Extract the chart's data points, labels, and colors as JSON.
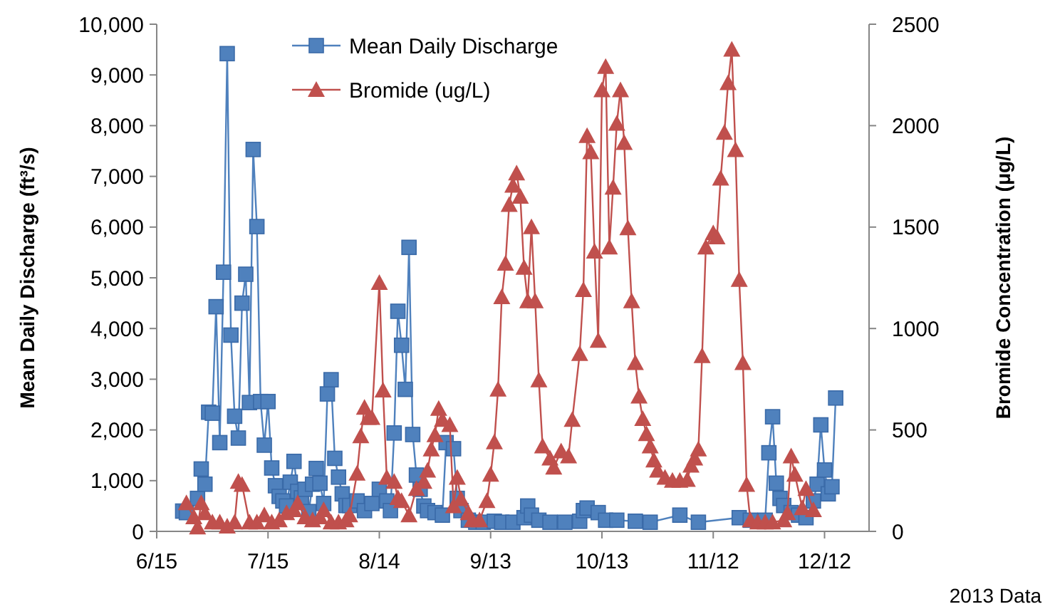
{
  "chart_data": {
    "type": "line",
    "ylabel": "Mean Daily Discharge (ft³/s)",
    "y2label": "Bromide Concentration (μg/L)",
    "annotations": [
      "2013 Data"
    ],
    "legend": "top",
    "grid": false,
    "line_style": "solid",
    "xlim": [
      "2013-06-15",
      "2013-12-24"
    ],
    "xticks": [
      {
        "value": "2013-06-15",
        "label": "6/15"
      },
      {
        "value": "2013-07-15",
        "label": "7/15"
      },
      {
        "value": "2013-08-14",
        "label": "8/14"
      },
      {
        "value": "2013-09-13",
        "label": "9/13"
      },
      {
        "value": "2013-10-13",
        "label": "10/13"
      },
      {
        "value": "2013-11-12",
        "label": "11/12"
      },
      {
        "value": "2013-12-12",
        "label": "12/12"
      }
    ],
    "ylim": [
      0,
      10000
    ],
    "yticks": [
      0,
      {
        "value": 1000,
        "label": "1,000"
      },
      {
        "value": 2000,
        "label": "2,000"
      },
      {
        "value": 3000,
        "label": "3,000"
      },
      {
        "value": 4000,
        "label": "4,000"
      },
      {
        "value": 5000,
        "label": "5,000"
      },
      {
        "value": 6000,
        "label": "6,000"
      },
      {
        "value": 7000,
        "label": "7,000"
      },
      {
        "value": 8000,
        "label": "8,000"
      },
      {
        "value": 9000,
        "label": "9,000"
      },
      {
        "value": 10000,
        "label": "10,000"
      }
    ],
    "y2lim": [
      0,
      2500
    ],
    "y2ticks": [
      0,
      500,
      1000,
      1500,
      2000,
      2500
    ],
    "series": [
      {
        "name": "Mean Daily Discharge",
        "color": "#4f81bd",
        "marker": "square",
        "x": [
          "2013-06-22",
          "2013-06-23",
          "2013-06-26",
          "2013-06-27",
          "2013-06-28",
          "2013-06-29",
          "2013-06-30",
          "2013-07-01",
          "2013-07-02",
          "2013-07-03",
          "2013-07-04",
          "2013-07-05",
          "2013-07-06",
          "2013-07-07",
          "2013-07-08",
          "2013-07-09",
          "2013-07-10",
          "2013-07-11",
          "2013-07-12",
          "2013-07-13",
          "2013-07-14",
          "2013-07-15",
          "2013-07-16",
          "2013-07-17",
          "2013-07-18",
          "2013-07-19",
          "2013-07-20",
          "2013-07-21",
          "2013-07-22",
          "2013-07-23",
          "2013-07-24",
          "2013-07-25",
          "2013-07-26",
          "2013-07-27",
          "2013-07-28",
          "2013-07-29",
          "2013-07-30",
          "2013-07-31",
          "2013-08-01",
          "2013-08-02",
          "2013-08-03",
          "2013-08-04",
          "2013-08-05",
          "2013-08-06",
          "2013-08-08",
          "2013-08-10",
          "2013-08-12",
          "2013-08-14",
          "2013-08-16",
          "2013-08-17",
          "2013-08-18",
          "2013-08-19",
          "2013-08-20",
          "2013-08-21",
          "2013-08-22",
          "2013-08-23",
          "2013-08-24",
          "2013-08-25",
          "2013-08-26",
          "2013-08-27",
          "2013-08-29",
          "2013-08-31",
          "2013-09-01",
          "2013-09-03",
          "2013-09-04",
          "2013-09-05",
          "2013-09-07",
          "2013-09-09",
          "2013-09-11",
          "2013-09-14",
          "2013-09-16",
          "2013-09-19",
          "2013-09-22",
          "2013-09-23",
          "2013-09-24",
          "2013-09-26",
          "2013-09-29",
          "2013-10-03",
          "2013-10-07",
          "2013-10-08",
          "2013-10-09",
          "2013-10-12",
          "2013-10-14",
          "2013-10-17",
          "2013-10-22",
          "2013-10-26",
          "2013-11-03",
          "2013-11-08",
          "2013-11-19",
          "2013-11-22",
          "2013-11-26",
          "2013-11-27",
          "2013-11-28",
          "2013-11-29",
          "2013-11-30",
          "2013-12-01",
          "2013-12-03",
          "2013-12-05",
          "2013-12-07",
          "2013-12-09",
          "2013-12-10",
          "2013-12-11",
          "2013-12-12",
          "2013-12-13",
          "2013-12-14",
          "2013-12-15"
        ],
        "values": [
          400,
          370,
          650,
          1230,
          930,
          2350,
          2330,
          4430,
          1750,
          5110,
          9420,
          3870,
          2270,
          1840,
          4500,
          5070,
          2540,
          7530,
          6010,
          2560,
          1700,
          2560,
          1250,
          900,
          690,
          600,
          500,
          970,
          1380,
          790,
          660,
          830,
          390,
          930,
          1240,
          950,
          550,
          2710,
          2990,
          1440,
          1070,
          740,
          510,
          510,
          600,
          410,
          550,
          830,
          600,
          410,
          1940,
          4340,
          3670,
          2800,
          5600,
          1910,
          1110,
          830,
          500,
          410,
          370,
          320,
          1750,
          1630,
          650,
          410,
          220,
          180,
          180,
          200,
          180,
          180,
          270,
          500,
          320,
          220,
          180,
          180,
          200,
          410,
          460,
          370,
          220,
          220,
          200,
          180,
          320,
          180,
          270,
          220,
          220,
          1550,
          2260,
          950,
          650,
          510,
          370,
          320,
          270,
          600,
          930,
          2100,
          1210,
          740,
          880,
          2630
        ]
      },
      {
        "name": "Bromide (ug/L)",
        "color": "#c0504d",
        "marker": "triangle",
        "axis": "y2",
        "x": [
          "2013-06-23",
          "2013-06-25",
          "2013-06-26",
          "2013-06-27",
          "2013-06-28",
          "2013-06-30",
          "2013-07-02",
          "2013-07-04",
          "2013-07-06",
          "2013-07-07",
          "2013-07-08",
          "2013-07-10",
          "2013-07-12",
          "2013-07-14",
          "2013-07-16",
          "2013-07-18",
          "2013-07-20",
          "2013-07-22",
          "2013-07-23",
          "2013-07-25",
          "2013-07-27",
          "2013-07-29",
          "2013-07-30",
          "2013-08-01",
          "2013-08-03",
          "2013-08-05",
          "2013-08-06",
          "2013-08-08",
          "2013-08-09",
          "2013-08-10",
          "2013-08-11",
          "2013-08-12",
          "2013-08-14",
          "2013-08-15",
          "2013-08-16",
          "2013-08-18",
          "2013-08-19",
          "2013-08-20",
          "2013-08-22",
          "2013-08-24",
          "2013-08-26",
          "2013-08-27",
          "2013-08-28",
          "2013-08-29",
          "2013-08-30",
          "2013-08-31",
          "2013-09-02",
          "2013-09-03",
          "2013-09-04",
          "2013-09-05",
          "2013-09-07",
          "2013-09-08",
          "2013-09-10",
          "2013-09-12",
          "2013-09-13",
          "2013-09-14",
          "2013-09-15",
          "2013-09-16",
          "2013-09-17",
          "2013-09-18",
          "2013-09-19",
          "2013-09-20",
          "2013-09-21",
          "2013-09-22",
          "2013-09-23",
          "2013-09-24",
          "2013-09-25",
          "2013-09-26",
          "2013-09-27",
          "2013-09-29",
          "2013-09-30",
          "2013-10-02",
          "2013-10-04",
          "2013-10-05",
          "2013-10-07",
          "2013-10-08",
          "2013-10-09",
          "2013-10-10",
          "2013-10-11",
          "2013-10-12",
          "2013-10-13",
          "2013-10-14",
          "2013-10-15",
          "2013-10-16",
          "2013-10-17",
          "2013-10-18",
          "2013-10-19",
          "2013-10-20",
          "2013-10-21",
          "2013-10-22",
          "2013-10-23",
          "2013-10-24",
          "2013-10-25",
          "2013-10-26",
          "2013-10-27",
          "2013-10-28",
          "2013-10-30",
          "2013-11-01",
          "2013-11-03",
          "2013-11-05",
          "2013-11-06",
          "2013-11-07",
          "2013-11-08",
          "2013-11-09",
          "2013-11-10",
          "2013-11-12",
          "2013-11-13",
          "2013-11-14",
          "2013-11-15",
          "2013-11-16",
          "2013-11-17",
          "2013-11-18",
          "2013-11-19",
          "2013-11-20",
          "2013-11-21",
          "2013-11-22",
          "2013-11-24",
          "2013-11-26",
          "2013-11-28",
          "2013-12-01",
          "2013-12-02",
          "2013-12-03",
          "2013-12-04",
          "2013-12-06",
          "2013-12-07",
          "2013-12-09"
        ],
        "values": [
          140,
          70,
          20,
          140,
          90,
          45,
          45,
          25,
          45,
          245,
          230,
          45,
          45,
          80,
          45,
          55,
          90,
          105,
          140,
          70,
          55,
          70,
          105,
          45,
          45,
          55,
          80,
          285,
          470,
          610,
          560,
          560,
          1225,
          695,
          265,
          245,
          165,
          150,
          80,
          210,
          245,
          300,
          405,
          475,
          605,
          550,
          525,
          125,
          265,
          160,
          90,
          55,
          55,
          150,
          280,
          440,
          700,
          1155,
          1320,
          1610,
          1705,
          1765,
          1650,
          1300,
          1135,
          1500,
          1135,
          745,
          420,
          360,
          315,
          395,
          370,
          550,
          875,
          1190,
          1950,
          1870,
          1380,
          940,
          2175,
          2290,
          1400,
          1695,
          2010,
          2175,
          1915,
          1495,
          1135,
          830,
          665,
          555,
          480,
          420,
          350,
          300,
          265,
          250,
          250,
          255,
          325,
          360,
          405,
          865,
          1400,
          1470,
          1450,
          1740,
          1965,
          2210,
          2375,
          1880,
          1240,
          830,
          230,
          55,
          45,
          45,
          45,
          55,
          90,
          370,
          280,
          115,
          210,
          105
        ]
      }
    ]
  }
}
